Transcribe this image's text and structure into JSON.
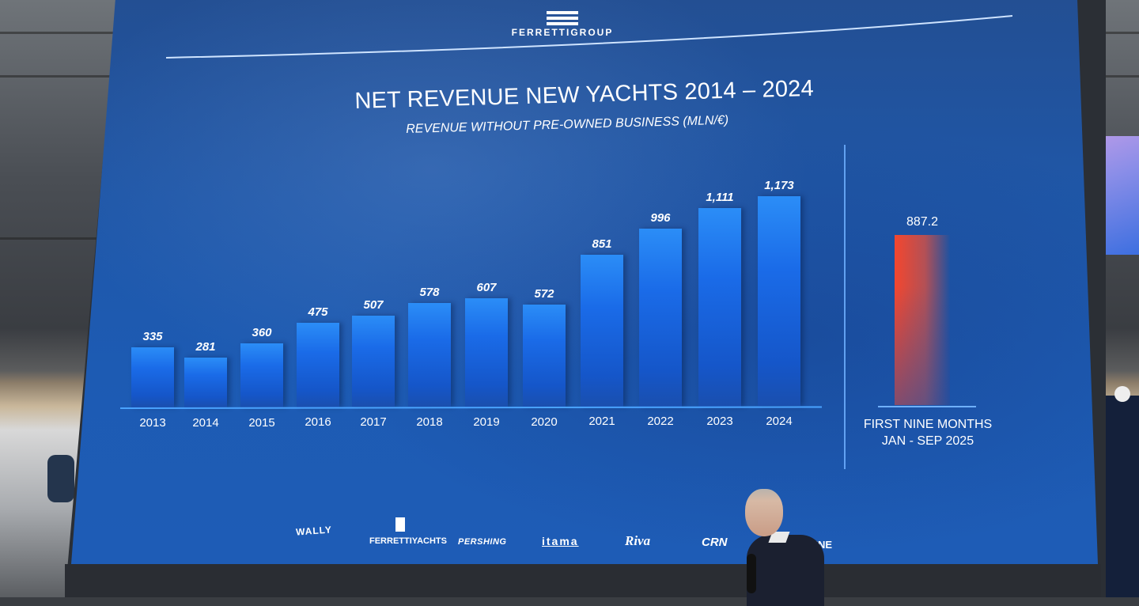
{
  "header": {
    "logo_text": "FERRETTIGROUP",
    "title": "NET REVENUE NEW YACHTS 2014 – 2024",
    "subtitle": "REVENUE WITHOUT PRE-OWNED BUSINESS (MLN/€)"
  },
  "chart_data": {
    "type": "bar",
    "title": "NET REVENUE NEW YACHTS 2014 – 2024",
    "subtitle": "REVENUE WITHOUT PRE-OWNED BUSINESS (MLN/€)",
    "xlabel": "",
    "ylabel": "Revenue (MLN/€)",
    "categories": [
      "2013",
      "2014",
      "2015",
      "2016",
      "2017",
      "2018",
      "2019",
      "2020",
      "2021",
      "2022",
      "2023",
      "2024"
    ],
    "values": [
      335,
      281,
      360,
      475,
      507,
      578,
      607,
      572,
      851,
      996,
      1111,
      1173
    ],
    "value_labels": [
      "335",
      "281",
      "360",
      "475",
      "507",
      "578",
      "607",
      "572",
      "851",
      "996",
      "1,111",
      "1,173"
    ],
    "grid": false,
    "legend": null,
    "bar_color": "#1a6be8",
    "highlight": {
      "label_line1": "FIRST NINE MONTHS",
      "label_line2": "JAN - SEP 2025",
      "value": 887.2,
      "value_label": "887.2",
      "color": "#ff4a2a"
    }
  },
  "brands": [
    "WALLY",
    "FERRETTIYACHTS",
    "PERSHING",
    "itama",
    "Riva",
    "CRN",
    "CUSTOM LINE"
  ],
  "brands_visible": [
    "WALLY",
    "FERRETTIYACHTS",
    "PERSHING",
    "itama",
    "Riva",
    "CRN",
    "M LINE"
  ],
  "colors": {
    "screen_blue": "#1e5bb3",
    "bar_top": "#2b8df7",
    "bar_bottom": "#1556c9",
    "highlight_red": "#ff4a2a",
    "text": "#ffffff"
  }
}
